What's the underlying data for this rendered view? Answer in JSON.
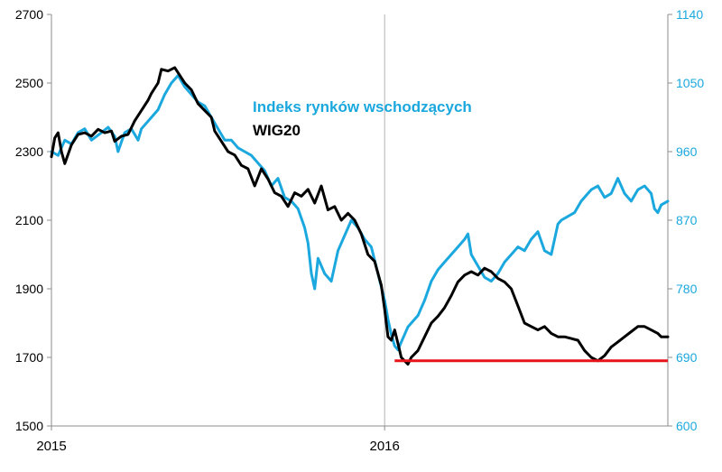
{
  "chart_data": {
    "type": "line",
    "title": "",
    "x_ticks": [
      {
        "label": "2015",
        "year": 2015.0
      },
      {
        "label": "2016",
        "year": 2016.0
      }
    ],
    "xlim": [
      2015.0,
      2016.85
    ],
    "y_left": {
      "lim": [
        1500,
        2700
      ],
      "ticks": [
        1500,
        1700,
        1900,
        2100,
        2300,
        2500,
        2700
      ]
    },
    "y_right": {
      "lim": [
        600,
        1140
      ],
      "ticks": [
        600,
        690,
        780,
        870,
        960,
        1050,
        1140
      ]
    },
    "grid": {
      "vertical_at": [
        2016.0
      ],
      "horizontal": false
    },
    "legend": {
      "placement": "top-center"
    },
    "series": [
      {
        "name": "Indeks rynków wschodzących",
        "axis": "right",
        "color": "#1BA8DE",
        "points": [
          [
            2015.0,
            960
          ],
          [
            2015.02,
            955
          ],
          [
            2015.04,
            975
          ],
          [
            2015.06,
            970
          ],
          [
            2015.08,
            985
          ],
          [
            2015.1,
            990
          ],
          [
            2015.12,
            975
          ],
          [
            2015.15,
            985
          ],
          [
            2015.17,
            992
          ],
          [
            2015.19,
            980
          ],
          [
            2015.2,
            960
          ],
          [
            2015.22,
            985
          ],
          [
            2015.24,
            990
          ],
          [
            2015.26,
            975
          ],
          [
            2015.27,
            990
          ],
          [
            2015.3,
            1005
          ],
          [
            2015.32,
            1015
          ],
          [
            2015.34,
            1035
          ],
          [
            2015.36,
            1050
          ],
          [
            2015.38,
            1060
          ],
          [
            2015.4,
            1045
          ],
          [
            2015.42,
            1035
          ],
          [
            2015.44,
            1025
          ],
          [
            2015.46,
            1020
          ],
          [
            2015.48,
            1005
          ],
          [
            2015.5,
            990
          ],
          [
            2015.52,
            975
          ],
          [
            2015.54,
            975
          ],
          [
            2015.56,
            965
          ],
          [
            2015.58,
            960
          ],
          [
            2015.6,
            955
          ],
          [
            2015.62,
            945
          ],
          [
            2015.64,
            935
          ],
          [
            2015.66,
            915
          ],
          [
            2015.68,
            925
          ],
          [
            2015.7,
            900
          ],
          [
            2015.72,
            895
          ],
          [
            2015.74,
            885
          ],
          [
            2015.76,
            860
          ],
          [
            2015.77,
            840
          ],
          [
            2015.78,
            800
          ],
          [
            2015.79,
            780
          ],
          [
            2015.8,
            820
          ],
          [
            2015.82,
            800
          ],
          [
            2015.84,
            790
          ],
          [
            2015.86,
            830
          ],
          [
            2015.88,
            850
          ],
          [
            2015.9,
            870
          ],
          [
            2015.92,
            860
          ],
          [
            2015.94,
            845
          ],
          [
            2015.96,
            835
          ],
          [
            2015.98,
            800
          ],
          [
            2016.0,
            765
          ],
          [
            2016.01,
            740
          ],
          [
            2016.02,
            720
          ],
          [
            2016.03,
            705
          ],
          [
            2016.04,
            700
          ],
          [
            2016.05,
            710
          ],
          [
            2016.06,
            720
          ],
          [
            2016.07,
            730
          ],
          [
            2016.08,
            735
          ],
          [
            2016.1,
            745
          ],
          [
            2016.12,
            765
          ],
          [
            2016.14,
            790
          ],
          [
            2016.16,
            805
          ],
          [
            2016.18,
            815
          ],
          [
            2016.2,
            825
          ],
          [
            2016.22,
            835
          ],
          [
            2016.24,
            845
          ],
          [
            2016.25,
            852
          ],
          [
            2016.26,
            825
          ],
          [
            2016.28,
            810
          ],
          [
            2016.3,
            795
          ],
          [
            2016.32,
            790
          ],
          [
            2016.34,
            800
          ],
          [
            2016.36,
            815
          ],
          [
            2016.38,
            825
          ],
          [
            2016.4,
            835
          ],
          [
            2016.42,
            830
          ],
          [
            2016.44,
            845
          ],
          [
            2016.46,
            855
          ],
          [
            2016.48,
            830
          ],
          [
            2016.5,
            825
          ],
          [
            2016.52,
            865
          ],
          [
            2016.53,
            870
          ],
          [
            2016.55,
            875
          ],
          [
            2016.57,
            880
          ],
          [
            2016.59,
            895
          ],
          [
            2016.61,
            905
          ],
          [
            2016.62,
            910
          ],
          [
            2016.64,
            915
          ],
          [
            2016.66,
            900
          ],
          [
            2016.68,
            905
          ],
          [
            2016.7,
            925
          ],
          [
            2016.72,
            905
          ],
          [
            2016.74,
            895
          ],
          [
            2016.76,
            910
          ],
          [
            2016.78,
            915
          ],
          [
            2016.8,
            905
          ],
          [
            2016.81,
            885
          ],
          [
            2016.82,
            880
          ],
          [
            2016.83,
            890
          ],
          [
            2016.85,
            895
          ]
        ]
      },
      {
        "name": "WIG20",
        "axis": "left",
        "color": "#000000",
        "points": [
          [
            2015.0,
            2285
          ],
          [
            2015.01,
            2340
          ],
          [
            2015.02,
            2355
          ],
          [
            2015.03,
            2300
          ],
          [
            2015.04,
            2265
          ],
          [
            2015.06,
            2320
          ],
          [
            2015.08,
            2350
          ],
          [
            2015.1,
            2355
          ],
          [
            2015.12,
            2345
          ],
          [
            2015.14,
            2365
          ],
          [
            2015.16,
            2355
          ],
          [
            2015.18,
            2360
          ],
          [
            2015.19,
            2330
          ],
          [
            2015.21,
            2345
          ],
          [
            2015.23,
            2350
          ],
          [
            2015.25,
            2390
          ],
          [
            2015.27,
            2420
          ],
          [
            2015.29,
            2450
          ],
          [
            2015.3,
            2470
          ],
          [
            2015.32,
            2500
          ],
          [
            2015.33,
            2540
          ],
          [
            2015.35,
            2535
          ],
          [
            2015.37,
            2545
          ],
          [
            2015.38,
            2530
          ],
          [
            2015.4,
            2500
          ],
          [
            2015.42,
            2480
          ],
          [
            2015.44,
            2440
          ],
          [
            2015.46,
            2420
          ],
          [
            2015.48,
            2400
          ],
          [
            2015.49,
            2360
          ],
          [
            2015.51,
            2330
          ],
          [
            2015.53,
            2300
          ],
          [
            2015.55,
            2290
          ],
          [
            2015.57,
            2260
          ],
          [
            2015.59,
            2250
          ],
          [
            2015.61,
            2200
          ],
          [
            2015.63,
            2250
          ],
          [
            2015.65,
            2220
          ],
          [
            2015.67,
            2180
          ],
          [
            2015.69,
            2170
          ],
          [
            2015.71,
            2140
          ],
          [
            2015.73,
            2180
          ],
          [
            2015.75,
            2170
          ],
          [
            2015.77,
            2190
          ],
          [
            2015.79,
            2150
          ],
          [
            2015.81,
            2200
          ],
          [
            2015.83,
            2130
          ],
          [
            2015.85,
            2140
          ],
          [
            2015.87,
            2100
          ],
          [
            2015.89,
            2120
          ],
          [
            2015.91,
            2100
          ],
          [
            2015.93,
            2060
          ],
          [
            2015.95,
            2000
          ],
          [
            2015.97,
            1980
          ],
          [
            2015.99,
            1910
          ],
          [
            2016.0,
            1840
          ],
          [
            2016.01,
            1760
          ],
          [
            2016.02,
            1750
          ],
          [
            2016.03,
            1780
          ],
          [
            2016.04,
            1740
          ],
          [
            2016.05,
            1700
          ],
          [
            2016.06,
            1690
          ],
          [
            2016.07,
            1680
          ],
          [
            2016.08,
            1700
          ],
          [
            2016.1,
            1720
          ],
          [
            2016.12,
            1760
          ],
          [
            2016.14,
            1800
          ],
          [
            2016.16,
            1820
          ],
          [
            2016.18,
            1845
          ],
          [
            2016.2,
            1880
          ],
          [
            2016.22,
            1920
          ],
          [
            2016.24,
            1940
          ],
          [
            2016.26,
            1950
          ],
          [
            2016.28,
            1940
          ],
          [
            2016.3,
            1960
          ],
          [
            2016.32,
            1950
          ],
          [
            2016.34,
            1930
          ],
          [
            2016.36,
            1920
          ],
          [
            2016.38,
            1900
          ],
          [
            2016.4,
            1850
          ],
          [
            2016.42,
            1800
          ],
          [
            2016.44,
            1790
          ],
          [
            2016.46,
            1780
          ],
          [
            2016.48,
            1790
          ],
          [
            2016.5,
            1770
          ],
          [
            2016.52,
            1760
          ],
          [
            2016.54,
            1760
          ],
          [
            2016.56,
            1755
          ],
          [
            2016.58,
            1750
          ],
          [
            2016.6,
            1720
          ],
          [
            2016.62,
            1700
          ],
          [
            2016.64,
            1690
          ],
          [
            2016.66,
            1705
          ],
          [
            2016.68,
            1730
          ],
          [
            2016.7,
            1745
          ],
          [
            2016.72,
            1760
          ],
          [
            2016.74,
            1775
          ],
          [
            2016.76,
            1790
          ],
          [
            2016.78,
            1790
          ],
          [
            2016.8,
            1780
          ],
          [
            2016.82,
            1770
          ],
          [
            2016.83,
            1760
          ],
          [
            2016.85,
            1760
          ]
        ]
      }
    ],
    "annotations": [
      {
        "type": "horizontal-line",
        "axis": "left",
        "y": 1690,
        "x_from": 2016.03,
        "x_to": 2016.85,
        "color": "#E8141B"
      }
    ]
  }
}
